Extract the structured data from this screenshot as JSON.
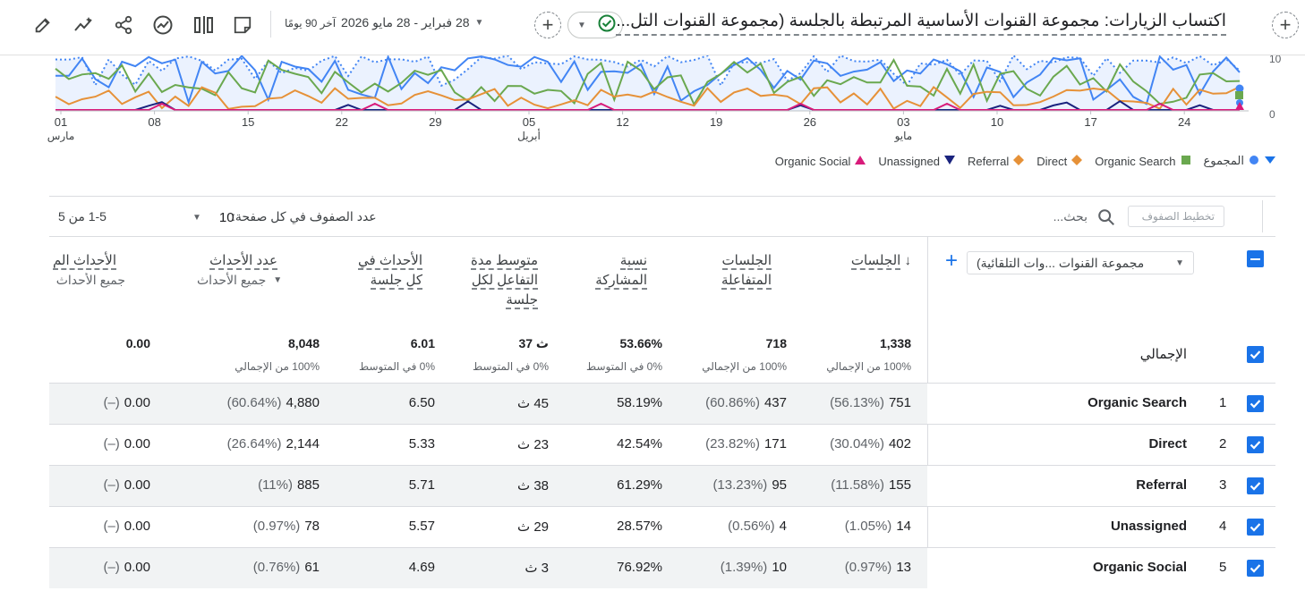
{
  "header": {
    "title": "اكتساب الزيارات: مجموعة القنوات الأساسية المرتبطة بالجلسة (مجموعة القنوات التل...",
    "date_prefix": "آخر 90 يومًا",
    "date_range": "28 فبراير - 28 مايو 2026",
    "status_color": "#188038"
  },
  "chart": {
    "y_ticks": [
      "10",
      "0"
    ],
    "x_ticks": [
      {
        "day": "01",
        "month": "مارس"
      },
      {
        "day": "08",
        "month": ""
      },
      {
        "day": "15",
        "month": ""
      },
      {
        "day": "22",
        "month": ""
      },
      {
        "day": "29",
        "month": ""
      },
      {
        "day": "05",
        "month": "أبريل"
      },
      {
        "day": "12",
        "month": ""
      },
      {
        "day": "19",
        "month": ""
      },
      {
        "day": "26",
        "month": ""
      },
      {
        "day": "03",
        "month": "مايو"
      },
      {
        "day": "10",
        "month": ""
      },
      {
        "day": "17",
        "month": ""
      },
      {
        "day": "24",
        "month": ""
      }
    ],
    "legend": [
      {
        "name": "المجموع",
        "color": "#4285f4",
        "shape": "circle"
      },
      {
        "name": "Organic Search",
        "color": "#6aa84f",
        "shape": "square"
      },
      {
        "name": "Direct",
        "color": "#e69138",
        "shape": "diamond"
      },
      {
        "name": "Referral",
        "color": "#e69138",
        "shape": "diamond"
      },
      {
        "name": "Unassigned",
        "color": "#1a237e",
        "shape": "triangle-down"
      },
      {
        "name": "Organic Social",
        "color": "#d81b7a",
        "shape": "triangle-up"
      }
    ]
  },
  "table": {
    "search_placeholder": "تخطيط الصفوف",
    "search_label": "بحث...",
    "rows_per_page_label": "عدد الصفوف في كل صفحة:",
    "rows_per_page_value": "10",
    "page_range": "1-5 من 5",
    "dimension_label": "مجموعة القنوات ...وات التلقائية)",
    "columns": [
      {
        "title1": "الجلسات",
        "title2": "",
        "title3": ""
      },
      {
        "title1": "الجلسات",
        "title2": "المتفاعلة",
        "title3": ""
      },
      {
        "title1": "نسبة",
        "title2": "المشاركة",
        "title3": ""
      },
      {
        "title1": "متوسط مدة",
        "title2": "التفاعل لكل",
        "title3": "جلسة"
      },
      {
        "title1": "الأحداث في",
        "title2": "كل جلسة",
        "title3": ""
      },
      {
        "title1": "عدد الأحداث",
        "title2": "",
        "title3": ""
      },
      {
        "title1": "الأحداث الم",
        "title2": "",
        "title3": ""
      }
    ],
    "event_filter_1": "جميع الأحداث",
    "event_filter_2": "جميع الأحداث",
    "totals": {
      "label": "الإجمالي",
      "values": [
        "1,338",
        "718",
        "53.66%",
        "37 ث",
        "6.01",
        "8,048",
        "0.00"
      ],
      "subs": [
        "100% من الإجمالي",
        "100% من الإجمالي",
        "0% في المتوسط",
        "0% في المتوسط",
        "0% في المتوسط",
        "100% من الإجمالي",
        ""
      ]
    },
    "rows": [
      {
        "num": "1",
        "name": "Organic Search",
        "sessions": "751",
        "sessions_pct": "(56.13%)",
        "engaged": "437",
        "engaged_pct": "(60.86%)",
        "rate": "58.19%",
        "duration": "45 ث",
        "events_per": "6.50",
        "events": "4,880",
        "events_pct": "(60.64%)",
        "key": "0.00",
        "key_pct": "(–)"
      },
      {
        "num": "2",
        "name": "Direct",
        "sessions": "402",
        "sessions_pct": "(30.04%)",
        "engaged": "171",
        "engaged_pct": "(23.82%)",
        "rate": "42.54%",
        "duration": "23 ث",
        "events_per": "5.33",
        "events": "2,144",
        "events_pct": "(26.64%)",
        "key": "0.00",
        "key_pct": "(–)"
      },
      {
        "num": "3",
        "name": "Referral",
        "sessions": "155",
        "sessions_pct": "(11.58%)",
        "engaged": "95",
        "engaged_pct": "(13.23%)",
        "rate": "61.29%",
        "duration": "38 ث",
        "events_per": "5.71",
        "events": "885",
        "events_pct": "(11%)",
        "key": "0.00",
        "key_pct": "(–)"
      },
      {
        "num": "4",
        "name": "Unassigned",
        "sessions": "14",
        "sessions_pct": "(1.05%)",
        "engaged": "4",
        "engaged_pct": "(0.56%)",
        "rate": "28.57%",
        "duration": "29 ث",
        "events_per": "5.57",
        "events": "78",
        "events_pct": "(0.97%)",
        "key": "0.00",
        "key_pct": "(–)"
      },
      {
        "num": "5",
        "name": "Organic Social",
        "sessions": "13",
        "sessions_pct": "(0.97%)",
        "engaged": "10",
        "engaged_pct": "(1.39%)",
        "rate": "76.92%",
        "duration": "3 ث",
        "events_per": "4.69",
        "events": "61",
        "events_pct": "(0.76%)",
        "key": "0.00",
        "key_pct": "(–)"
      }
    ]
  }
}
